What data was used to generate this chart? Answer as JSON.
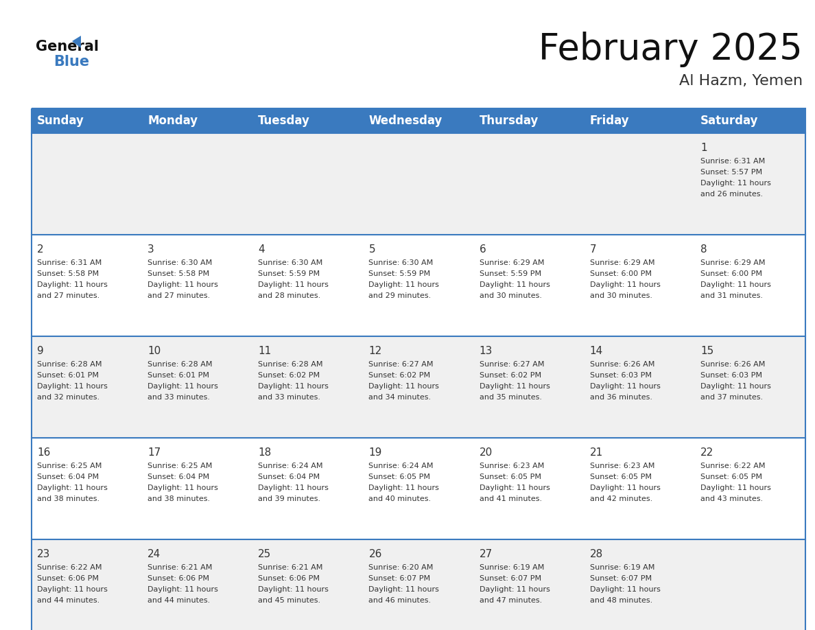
{
  "title": "February 2025",
  "subtitle": "Al Hazm, Yemen",
  "header_color": "#3a7abf",
  "header_text_color": "#ffffff",
  "day_names": [
    "Sunday",
    "Monday",
    "Tuesday",
    "Wednesday",
    "Thursday",
    "Friday",
    "Saturday"
  ],
  "bg_color": "#ffffff",
  "cell_bg_odd": "#f0f0f0",
  "cell_bg_even": "#ffffff",
  "day_num_color": "#333333",
  "text_color": "#333333",
  "line_color": "#3a7abf",
  "logo_text_color": "#111111",
  "logo_blue_color": "#3a7abf",
  "title_fontsize": 38,
  "subtitle_fontsize": 16,
  "header_fontsize": 12,
  "day_num_fontsize": 11,
  "cell_text_fontsize": 8,
  "calendar": [
    [
      {
        "day": "",
        "sunrise": "",
        "sunset": "",
        "daylight": ""
      },
      {
        "day": "",
        "sunrise": "",
        "sunset": "",
        "daylight": ""
      },
      {
        "day": "",
        "sunrise": "",
        "sunset": "",
        "daylight": ""
      },
      {
        "day": "",
        "sunrise": "",
        "sunset": "",
        "daylight": ""
      },
      {
        "day": "",
        "sunrise": "",
        "sunset": "",
        "daylight": ""
      },
      {
        "day": "",
        "sunrise": "",
        "sunset": "",
        "daylight": ""
      },
      {
        "day": "1",
        "sunrise": "6:31 AM",
        "sunset": "5:57 PM",
        "daylight": "11 hours and 26 minutes."
      }
    ],
    [
      {
        "day": "2",
        "sunrise": "6:31 AM",
        "sunset": "5:58 PM",
        "daylight": "11 hours and 27 minutes."
      },
      {
        "day": "3",
        "sunrise": "6:30 AM",
        "sunset": "5:58 PM",
        "daylight": "11 hours and 27 minutes."
      },
      {
        "day": "4",
        "sunrise": "6:30 AM",
        "sunset": "5:59 PM",
        "daylight": "11 hours and 28 minutes."
      },
      {
        "day": "5",
        "sunrise": "6:30 AM",
        "sunset": "5:59 PM",
        "daylight": "11 hours and 29 minutes."
      },
      {
        "day": "6",
        "sunrise": "6:29 AM",
        "sunset": "5:59 PM",
        "daylight": "11 hours and 30 minutes."
      },
      {
        "day": "7",
        "sunrise": "6:29 AM",
        "sunset": "6:00 PM",
        "daylight": "11 hours and 30 minutes."
      },
      {
        "day": "8",
        "sunrise": "6:29 AM",
        "sunset": "6:00 PM",
        "daylight": "11 hours and 31 minutes."
      }
    ],
    [
      {
        "day": "9",
        "sunrise": "6:28 AM",
        "sunset": "6:01 PM",
        "daylight": "11 hours and 32 minutes."
      },
      {
        "day": "10",
        "sunrise": "6:28 AM",
        "sunset": "6:01 PM",
        "daylight": "11 hours and 33 minutes."
      },
      {
        "day": "11",
        "sunrise": "6:28 AM",
        "sunset": "6:02 PM",
        "daylight": "11 hours and 33 minutes."
      },
      {
        "day": "12",
        "sunrise": "6:27 AM",
        "sunset": "6:02 PM",
        "daylight": "11 hours and 34 minutes."
      },
      {
        "day": "13",
        "sunrise": "6:27 AM",
        "sunset": "6:02 PM",
        "daylight": "11 hours and 35 minutes."
      },
      {
        "day": "14",
        "sunrise": "6:26 AM",
        "sunset": "6:03 PM",
        "daylight": "11 hours and 36 minutes."
      },
      {
        "day": "15",
        "sunrise": "6:26 AM",
        "sunset": "6:03 PM",
        "daylight": "11 hours and 37 minutes."
      }
    ],
    [
      {
        "day": "16",
        "sunrise": "6:25 AM",
        "sunset": "6:04 PM",
        "daylight": "11 hours and 38 minutes."
      },
      {
        "day": "17",
        "sunrise": "6:25 AM",
        "sunset": "6:04 PM",
        "daylight": "11 hours and 38 minutes."
      },
      {
        "day": "18",
        "sunrise": "6:24 AM",
        "sunset": "6:04 PM",
        "daylight": "11 hours and 39 minutes."
      },
      {
        "day": "19",
        "sunrise": "6:24 AM",
        "sunset": "6:05 PM",
        "daylight": "11 hours and 40 minutes."
      },
      {
        "day": "20",
        "sunrise": "6:23 AM",
        "sunset": "6:05 PM",
        "daylight": "11 hours and 41 minutes."
      },
      {
        "day": "21",
        "sunrise": "6:23 AM",
        "sunset": "6:05 PM",
        "daylight": "11 hours and 42 minutes."
      },
      {
        "day": "22",
        "sunrise": "6:22 AM",
        "sunset": "6:05 PM",
        "daylight": "11 hours and 43 minutes."
      }
    ],
    [
      {
        "day": "23",
        "sunrise": "6:22 AM",
        "sunset": "6:06 PM",
        "daylight": "11 hours and 44 minutes."
      },
      {
        "day": "24",
        "sunrise": "6:21 AM",
        "sunset": "6:06 PM",
        "daylight": "11 hours and 44 minutes."
      },
      {
        "day": "25",
        "sunrise": "6:21 AM",
        "sunset": "6:06 PM",
        "daylight": "11 hours and 45 minutes."
      },
      {
        "day": "26",
        "sunrise": "6:20 AM",
        "sunset": "6:07 PM",
        "daylight": "11 hours and 46 minutes."
      },
      {
        "day": "27",
        "sunrise": "6:19 AM",
        "sunset": "6:07 PM",
        "daylight": "11 hours and 47 minutes."
      },
      {
        "day": "28",
        "sunrise": "6:19 AM",
        "sunset": "6:07 PM",
        "daylight": "11 hours and 48 minutes."
      },
      {
        "day": "",
        "sunrise": "",
        "sunset": "",
        "daylight": ""
      }
    ]
  ]
}
